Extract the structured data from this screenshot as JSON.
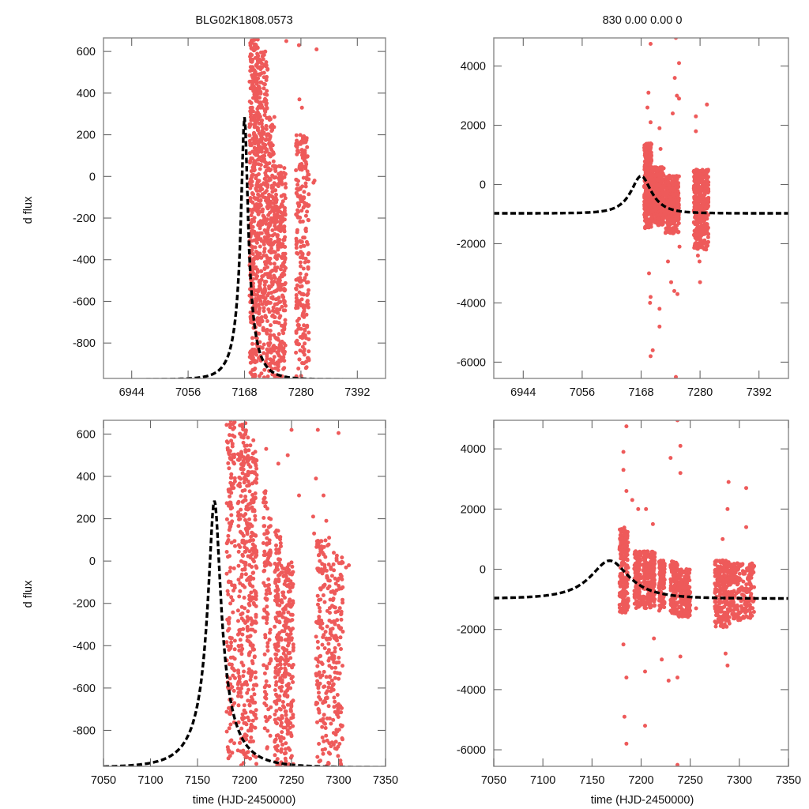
{
  "figure": {
    "title_left": "BLG02K1808.0573",
    "title_right": "830  0.00  0.00  0",
    "colors": {
      "points": "#ee5a5a",
      "model": "#000000",
      "frame": "#888888"
    }
  },
  "chart_data": [
    {
      "id": "top-left",
      "type": "scatter",
      "title": "BLG02K1808.0573",
      "xlabel": "",
      "ylabel": "d flux",
      "xlim": [
        6888,
        7448
      ],
      "ylim": [
        -970,
        665
      ],
      "xticks": [
        6944,
        7056,
        7168,
        7280,
        7392
      ],
      "xtick_labels": [
        "6944",
        "7056",
        "7168",
        "7280",
        "7392"
      ],
      "yticks": [
        600,
        400,
        200,
        0,
        -200,
        -400,
        -600,
        -800
      ],
      "ytick_labels": [
        "600",
        "400",
        "200",
        "0",
        "-200",
        "-400",
        "-600",
        "-800"
      ],
      "model": {
        "t0": 7168,
        "peak": 285,
        "baseline": -975,
        "tE": 38,
        "u0": 0.17,
        "style": "black dashed"
      },
      "clusters": [
        {
          "x": [
            7178,
            7196
          ],
          "y": [
            -970,
            665
          ],
          "n": 420
        },
        {
          "x": [
            7196,
            7214
          ],
          "y": [
            -970,
            600
          ],
          "n": 300
        },
        {
          "x": [
            7214,
            7228
          ],
          "y": [
            -970,
            300
          ],
          "n": 180
        },
        {
          "x": [
            7228,
            7250
          ],
          "y": [
            -970,
            50
          ],
          "n": 260
        },
        {
          "x": [
            7270,
            7296
          ],
          "y": [
            -970,
            200
          ],
          "n": 260
        }
      ],
      "outliers": [
        [
          7251,
          650
        ],
        [
          7276,
          630
        ],
        [
          7311,
          610
        ],
        [
          7277,
          370
        ],
        [
          7282,
          330
        ],
        [
          7307,
          -20
        ],
        [
          7305,
          -30
        ]
      ]
    },
    {
      "id": "top-right",
      "type": "scatter",
      "title": "830  0.00  0.00  0",
      "xlabel": "",
      "ylabel": "",
      "xlim": [
        6888,
        7448
      ],
      "ylim": [
        -6550,
        4950
      ],
      "xticks": [
        6944,
        7056,
        7168,
        7280,
        7392
      ],
      "xtick_labels": [
        "6944",
        "7056",
        "7168",
        "7280",
        "7392"
      ],
      "yticks": [
        4000,
        2000,
        0,
        -2000,
        -4000,
        -6000
      ],
      "ytick_labels": [
        "4000",
        "2000",
        "0",
        "-2000",
        "-4000",
        "-6000"
      ],
      "model": {
        "t0": 7168,
        "peak": 285,
        "baseline": -975,
        "tE": 38,
        "u0": 0.55,
        "style": "black dashed"
      },
      "clusters": [
        {
          "x": [
            7174,
            7188
          ],
          "y": [
            -1500,
            1400
          ],
          "n": 300
        },
        {
          "x": [
            7188,
            7212
          ],
          "y": [
            -1400,
            600
          ],
          "n": 380
        },
        {
          "x": [
            7214,
            7240
          ],
          "y": [
            -1700,
            300
          ],
          "n": 360
        },
        {
          "x": [
            7268,
            7296
          ],
          "y": [
            -2200,
            500
          ],
          "n": 420
        }
      ],
      "outliers": [
        [
          7186,
          4750
        ],
        [
          7182,
          3100
        ],
        [
          7180,
          2600
        ],
        [
          7186,
          2100
        ],
        [
          7203,
          1900
        ],
        [
          7205,
          1200
        ],
        [
          7228,
          2400
        ],
        [
          7232,
          3600
        ],
        [
          7240,
          4100
        ],
        [
          7240,
          2900
        ],
        [
          7236,
          3000
        ],
        [
          7293,
          2700
        ],
        [
          7272,
          2300
        ],
        [
          7272,
          1800
        ],
        [
          7183,
          -3000
        ],
        [
          7186,
          -3800
        ],
        [
          7185,
          -4000
        ],
        [
          7203,
          -4200
        ],
        [
          7190,
          -5600
        ],
        [
          7186,
          -5800
        ],
        [
          7203,
          -4800
        ],
        [
          7225,
          -3300
        ],
        [
          7231,
          -3600
        ],
        [
          7237,
          -3700
        ],
        [
          7219,
          -2600
        ],
        [
          7280,
          -3300
        ],
        [
          7279,
          -2600
        ],
        [
          7241,
          -2100
        ],
        [
          7276,
          -2400
        ],
        [
          7234,
          -6500
        ],
        [
          7234,
          4950
        ],
        [
          7280,
          -1900
        ],
        [
          7293,
          -1600
        ]
      ]
    },
    {
      "id": "bottom-left",
      "type": "scatter",
      "title": "",
      "xlabel": "time (HJD-2450000)",
      "ylabel": "d flux",
      "xlim": [
        7050,
        7350
      ],
      "ylim": [
        -970,
        665
      ],
      "xticks": [
        7050,
        7100,
        7150,
        7200,
        7250,
        7300,
        7350
      ],
      "xtick_labels": [
        "7050",
        "7100",
        "7150",
        "7200",
        "7250",
        "7300",
        "7350"
      ],
      "yticks": [
        600,
        400,
        200,
        0,
        -200,
        -400,
        -600,
        -800
      ],
      "ytick_labels": [
        "600",
        "400",
        "200",
        "0",
        "-200",
        "-400",
        "-600",
        "-800"
      ],
      "model": {
        "t0": 7168,
        "peak": 285,
        "baseline": -975,
        "tE": 38,
        "u0": 0.17,
        "style": "black dashed"
      },
      "clusters": [
        {
          "x": [
            7181,
            7190
          ],
          "y": [
            -970,
            665
          ],
          "n": 160
        },
        {
          "x": [
            7193,
            7203
          ],
          "y": [
            -970,
            665
          ],
          "n": 200
        },
        {
          "x": [
            7203,
            7213
          ],
          "y": [
            -970,
            600
          ],
          "n": 220
        },
        {
          "x": [
            7220,
            7228
          ],
          "y": [
            -970,
            350
          ],
          "n": 110
        },
        {
          "x": [
            7232,
            7240
          ],
          "y": [
            -970,
            150
          ],
          "n": 160
        },
        {
          "x": [
            7240,
            7252
          ],
          "y": [
            -970,
            0
          ],
          "n": 200
        },
        {
          "x": [
            7276,
            7290
          ],
          "y": [
            -970,
            120
          ],
          "n": 160
        },
        {
          "x": [
            7290,
            7305
          ],
          "y": [
            -970,
            50
          ],
          "n": 150
        }
      ],
      "outliers": [
        [
          7250,
          620
        ],
        [
          7246,
          500
        ],
        [
          7236,
          460
        ],
        [
          7223,
          530
        ],
        [
          7278,
          620
        ],
        [
          7300,
          605
        ],
        [
          7276,
          390
        ],
        [
          7284,
          310
        ],
        [
          7287,
          190
        ],
        [
          7311,
          -20
        ],
        [
          7308,
          -30
        ],
        [
          7258,
          310
        ],
        [
          7273,
          210
        ],
        [
          7274,
          130
        ]
      ]
    },
    {
      "id": "bottom-right",
      "type": "scatter",
      "title": "",
      "xlabel": "time (HJD-2450000)",
      "ylabel": "",
      "xlim": [
        7050,
        7350
      ],
      "ylim": [
        -6550,
        4950
      ],
      "xticks": [
        7050,
        7100,
        7150,
        7200,
        7250,
        7300,
        7350
      ],
      "xtick_labels": [
        "7050",
        "7100",
        "7150",
        "7200",
        "7250",
        "7300",
        "7350"
      ],
      "yticks": [
        4000,
        2000,
        0,
        -2000,
        -4000,
        -6000
      ],
      "ytick_labels": [
        "4000",
        "2000",
        "0",
        "-2000",
        "-4000",
        "-6000"
      ],
      "model": {
        "t0": 7168,
        "peak": 285,
        "baseline": -975,
        "tE": 38,
        "u0": 0.55,
        "style": "black dashed"
      },
      "clusters": [
        {
          "x": [
            7178,
            7187
          ],
          "y": [
            -1500,
            1400
          ],
          "n": 200
        },
        {
          "x": [
            7193,
            7200
          ],
          "y": [
            -1300,
            600
          ],
          "n": 140
        },
        {
          "x": [
            7202,
            7214
          ],
          "y": [
            -1300,
            600
          ],
          "n": 220
        },
        {
          "x": [
            7218,
            7224
          ],
          "y": [
            -1400,
            300
          ],
          "n": 110
        },
        {
          "x": [
            7230,
            7237
          ],
          "y": [
            -1500,
            300
          ],
          "n": 140
        },
        {
          "x": [
            7238,
            7250
          ],
          "y": [
            -1600,
            0
          ],
          "n": 200
        },
        {
          "x": [
            7275,
            7290
          ],
          "y": [
            -2000,
            300
          ],
          "n": 220
        },
        {
          "x": [
            7290,
            7315
          ],
          "y": [
            -1700,
            200
          ],
          "n": 230
        }
      ],
      "outliers": [
        [
          7185,
          4750
        ],
        [
          7182,
          3900
        ],
        [
          7182,
          3300
        ],
        [
          7185,
          2600
        ],
        [
          7191,
          2300
        ],
        [
          7197,
          2000
        ],
        [
          7205,
          2000
        ],
        [
          7212,
          1500
        ],
        [
          7230,
          3700
        ],
        [
          7240,
          4100
        ],
        [
          7240,
          3200
        ],
        [
          7289,
          2900
        ],
        [
          7307,
          2700
        ],
        [
          7288,
          2000
        ],
        [
          7283,
          1000
        ],
        [
          7307,
          1400
        ],
        [
          7182,
          -2500
        ],
        [
          7185,
          -3600
        ],
        [
          7183,
          -4900
        ],
        [
          7185,
          -5800
        ],
        [
          7204,
          -5200
        ],
        [
          7204,
          -3400
        ],
        [
          7213,
          -2300
        ],
        [
          7221,
          -3000
        ],
        [
          7228,
          -3700
        ],
        [
          7237,
          -3600
        ],
        [
          7240,
          -2900
        ],
        [
          7286,
          -2800
        ],
        [
          7288,
          -3200
        ],
        [
          7237,
          -6500
        ],
        [
          7237,
          4950
        ],
        [
          7256,
          -1300
        ],
        [
          7309,
          -1600
        ]
      ]
    }
  ]
}
